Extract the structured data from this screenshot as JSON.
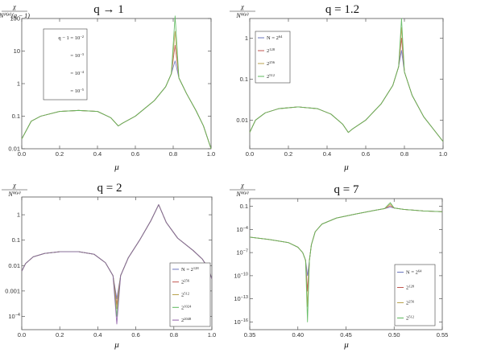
{
  "colors": {
    "series": [
      "#6a76bd",
      "#c1564f",
      "#b9a24d",
      "#5cb85c",
      "#8e5ea8"
    ],
    "frame": "#555555"
  },
  "chart_data": [
    {
      "type": "line",
      "title": "q → 1",
      "ylabel_num": "χ",
      "ylabel_den": "N^{ψ(μ)}(q − 1)",
      "xlabel": "μ",
      "xlim": [
        0,
        1
      ],
      "ylim": [
        0.01,
        100
      ],
      "yscale": "log",
      "xticks": [
        "0.0",
        "0.2",
        "0.4",
        "0.6",
        "0.8",
        "1.0"
      ],
      "yticks": [
        "0.01",
        "0.1",
        "1",
        "10",
        "100"
      ],
      "legend_position": "top-left",
      "legend": [
        "q − 1 = 10^{−2}",
        "= 10^{−3}",
        "= 10^{−4}",
        "= 10^{−5}"
      ],
      "series": [
        {
          "name": "q − 1 = 10^{−2}",
          "x": [
            0.0,
            0.05,
            0.1,
            0.2,
            0.3,
            0.4,
            0.47,
            0.51,
            0.53,
            0.6,
            0.7,
            0.76,
            0.79,
            0.81,
            0.83,
            0.87,
            0.92,
            0.96,
            1.0
          ],
          "y": [
            0.02,
            0.07,
            0.1,
            0.14,
            0.15,
            0.14,
            0.09,
            0.05,
            0.06,
            0.1,
            0.3,
            0.8,
            2.0,
            5.0,
            1.5,
            0.5,
            0.15,
            0.05,
            0.01
          ]
        },
        {
          "name": "= 10^{−3}",
          "x": [
            0.0,
            0.05,
            0.1,
            0.2,
            0.3,
            0.4,
            0.47,
            0.51,
            0.53,
            0.6,
            0.7,
            0.76,
            0.79,
            0.81,
            0.83,
            0.87,
            0.92,
            0.96,
            1.0
          ],
          "y": [
            0.02,
            0.07,
            0.1,
            0.14,
            0.15,
            0.14,
            0.09,
            0.05,
            0.06,
            0.1,
            0.3,
            0.8,
            2.0,
            15.0,
            1.5,
            0.5,
            0.15,
            0.05,
            0.01
          ]
        },
        {
          "name": "= 10^{−4}",
          "x": [
            0.0,
            0.05,
            0.1,
            0.2,
            0.3,
            0.4,
            0.47,
            0.51,
            0.53,
            0.6,
            0.7,
            0.76,
            0.79,
            0.81,
            0.83,
            0.87,
            0.92,
            0.96,
            1.0
          ],
          "y": [
            0.02,
            0.07,
            0.1,
            0.14,
            0.15,
            0.14,
            0.09,
            0.05,
            0.06,
            0.1,
            0.3,
            0.8,
            2.0,
            40.0,
            1.5,
            0.5,
            0.15,
            0.05,
            0.01
          ]
        },
        {
          "name": "= 10^{−5}",
          "x": [
            0.0,
            0.05,
            0.1,
            0.2,
            0.3,
            0.4,
            0.47,
            0.51,
            0.53,
            0.6,
            0.7,
            0.76,
            0.79,
            0.81,
            0.83,
            0.87,
            0.92,
            0.96,
            1.0
          ],
          "y": [
            0.02,
            0.07,
            0.1,
            0.14,
            0.15,
            0.14,
            0.09,
            0.05,
            0.06,
            0.1,
            0.3,
            0.8,
            2.0,
            120.0,
            1.5,
            0.5,
            0.15,
            0.05,
            0.01
          ]
        }
      ]
    },
    {
      "type": "line",
      "title": "q = 1.2",
      "ylabel_num": "χ",
      "ylabel_den": "N^{ψ(μ)}",
      "xlabel": "μ",
      "xlim": [
        0,
        1
      ],
      "ylim": [
        0.002,
        3
      ],
      "yscale": "log",
      "xticks": [
        "0.0",
        "0.2",
        "0.4",
        "0.6",
        "0.8",
        "1.0"
      ],
      "yticks": [
        "0.01",
        "0.1",
        "1"
      ],
      "legend_position": "top-left",
      "legend": [
        "N = 2^{64}",
        "2^{128}",
        "2^{256}",
        "2^{512}"
      ],
      "series": [
        {
          "name": "N = 2^{64}",
          "x": [
            0.0,
            0.03,
            0.08,
            0.15,
            0.25,
            0.35,
            0.42,
            0.48,
            0.51,
            0.53,
            0.6,
            0.68,
            0.74,
            0.77,
            0.785,
            0.8,
            0.84,
            0.9,
            0.95,
            1.0
          ],
          "y": [
            0.005,
            0.01,
            0.015,
            0.019,
            0.021,
            0.019,
            0.014,
            0.008,
            0.005,
            0.006,
            0.01,
            0.025,
            0.07,
            0.2,
            0.5,
            0.15,
            0.04,
            0.012,
            0.006,
            0.003
          ]
        },
        {
          "name": "2^{128}",
          "x": [
            0.0,
            0.03,
            0.08,
            0.15,
            0.25,
            0.35,
            0.42,
            0.48,
            0.51,
            0.53,
            0.6,
            0.68,
            0.74,
            0.77,
            0.785,
            0.8,
            0.84,
            0.9,
            0.95,
            1.0
          ],
          "y": [
            0.005,
            0.01,
            0.015,
            0.019,
            0.021,
            0.019,
            0.014,
            0.008,
            0.005,
            0.006,
            0.01,
            0.025,
            0.07,
            0.2,
            1.0,
            0.15,
            0.04,
            0.012,
            0.006,
            0.003
          ]
        },
        {
          "name": "2^{256}",
          "x": [
            0.0,
            0.03,
            0.08,
            0.15,
            0.25,
            0.35,
            0.42,
            0.48,
            0.51,
            0.53,
            0.6,
            0.68,
            0.74,
            0.77,
            0.785,
            0.8,
            0.84,
            0.9,
            0.95,
            1.0
          ],
          "y": [
            0.005,
            0.01,
            0.015,
            0.019,
            0.021,
            0.019,
            0.014,
            0.008,
            0.005,
            0.006,
            0.01,
            0.025,
            0.07,
            0.2,
            1.8,
            0.15,
            0.04,
            0.012,
            0.006,
            0.003
          ]
        },
        {
          "name": "2^{512}",
          "x": [
            0.0,
            0.03,
            0.08,
            0.15,
            0.25,
            0.35,
            0.42,
            0.48,
            0.51,
            0.53,
            0.6,
            0.68,
            0.74,
            0.77,
            0.785,
            0.8,
            0.84,
            0.9,
            0.95,
            1.0
          ],
          "y": [
            0.005,
            0.01,
            0.015,
            0.019,
            0.021,
            0.019,
            0.014,
            0.008,
            0.005,
            0.006,
            0.01,
            0.025,
            0.07,
            0.2,
            3.0,
            0.15,
            0.04,
            0.012,
            0.006,
            0.003
          ]
        }
      ]
    },
    {
      "type": "line",
      "title": "q = 2",
      "ylabel_num": "χ",
      "ylabel_den": "N^{ψ(μ)}",
      "xlabel": "μ",
      "xlim": [
        0,
        1
      ],
      "ylim": [
        3e-05,
        5
      ],
      "yscale": "log",
      "xticks": [
        "0.0",
        "0.2",
        "0.4",
        "0.6",
        "0.8",
        "1.0"
      ],
      "yticks": [
        "10^{−4}",
        "0.001",
        "0.01",
        "0.1",
        "1"
      ],
      "legend_position": "bottom-right",
      "legend": [
        "N = 2^{128}",
        "2^{256}",
        "2^{512}",
        "2^{1024}",
        "2^{2048}"
      ],
      "series": [
        {
          "name": "N = 2^{128}",
          "x": [
            0.0,
            0.02,
            0.06,
            0.12,
            0.2,
            0.3,
            0.38,
            0.44,
            0.48,
            0.5,
            0.52,
            0.56,
            0.62,
            0.68,
            0.72,
            0.76,
            0.82,
            0.9,
            0.95,
            0.98,
            1.0
          ],
          "y": [
            0.006,
            0.012,
            0.022,
            0.03,
            0.035,
            0.035,
            0.028,
            0.013,
            0.004,
            0.0005,
            0.004,
            0.02,
            0.1,
            0.6,
            2.5,
            0.5,
            0.12,
            0.04,
            0.018,
            0.008,
            0.003
          ]
        },
        {
          "name": "2^{256}",
          "x": [
            0.0,
            0.02,
            0.06,
            0.12,
            0.2,
            0.3,
            0.38,
            0.44,
            0.48,
            0.5,
            0.52,
            0.56,
            0.62,
            0.68,
            0.72,
            0.76,
            0.82,
            0.9,
            0.95,
            0.98,
            1.0
          ],
          "y": [
            0.006,
            0.012,
            0.022,
            0.03,
            0.035,
            0.035,
            0.028,
            0.013,
            0.004,
            0.0003,
            0.004,
            0.02,
            0.1,
            0.6,
            2.5,
            0.5,
            0.12,
            0.04,
            0.018,
            0.008,
            0.003
          ]
        },
        {
          "name": "2^{512}",
          "x": [
            0.0,
            0.02,
            0.06,
            0.12,
            0.2,
            0.3,
            0.38,
            0.44,
            0.48,
            0.5,
            0.52,
            0.56,
            0.62,
            0.68,
            0.72,
            0.76,
            0.82,
            0.9,
            0.95,
            0.98,
            1.0
          ],
          "y": [
            0.006,
            0.012,
            0.022,
            0.03,
            0.035,
            0.035,
            0.028,
            0.013,
            0.004,
            0.0002,
            0.004,
            0.02,
            0.1,
            0.6,
            2.5,
            0.5,
            0.12,
            0.04,
            0.018,
            0.008,
            0.003
          ]
        },
        {
          "name": "2^{1024}",
          "x": [
            0.0,
            0.02,
            0.06,
            0.12,
            0.2,
            0.3,
            0.38,
            0.44,
            0.48,
            0.5,
            0.52,
            0.56,
            0.62,
            0.68,
            0.72,
            0.76,
            0.82,
            0.9,
            0.95,
            0.98,
            1.0
          ],
          "y": [
            0.006,
            0.012,
            0.022,
            0.03,
            0.035,
            0.035,
            0.028,
            0.013,
            0.004,
            0.0001,
            0.004,
            0.02,
            0.1,
            0.6,
            2.5,
            0.5,
            0.12,
            0.04,
            0.018,
            0.008,
            0.003
          ]
        },
        {
          "name": "2^{2048}",
          "x": [
            0.0,
            0.02,
            0.06,
            0.12,
            0.2,
            0.3,
            0.38,
            0.44,
            0.48,
            0.5,
            0.52,
            0.56,
            0.62,
            0.68,
            0.72,
            0.76,
            0.82,
            0.9,
            0.95,
            0.98,
            1.0
          ],
          "y": [
            0.006,
            0.012,
            0.022,
            0.03,
            0.035,
            0.035,
            0.028,
            0.013,
            0.004,
            5e-05,
            0.004,
            0.02,
            0.1,
            0.6,
            2.5,
            0.5,
            0.12,
            0.04,
            0.018,
            0.008,
            0.003
          ]
        }
      ]
    },
    {
      "type": "line",
      "title": "q = 7",
      "ylabel_num": "χ",
      "ylabel_den": "N^{ψ(μ)}",
      "xlabel": "μ",
      "xlim": [
        0.35,
        0.55
      ],
      "ylim": [
        1e-17,
        1
      ],
      "yscale": "log",
      "xticks": [
        "0.35",
        "0.40",
        "0.45",
        "0.50",
        "0.55"
      ],
      "yticks": [
        "10^{−16}",
        "10^{−13}",
        "10^{−10}",
        "10^{−7}",
        "10^{−4}",
        "0.1"
      ],
      "legend_position": "bottom-right",
      "legend": [
        "N = 2^{64}",
        "2^{128}",
        "2^{256}",
        "2^{512}"
      ],
      "series": [
        {
          "name": "N = 2^{64}",
          "x": [
            0.35,
            0.37,
            0.39,
            0.4,
            0.405,
            0.408,
            0.41,
            0.412,
            0.414,
            0.418,
            0.425,
            0.44,
            0.46,
            0.48,
            0.49,
            0.496,
            0.5,
            0.51,
            0.53,
            0.55
          ],
          "y": [
            1e-05,
            5e-06,
            2e-06,
            5e-07,
            1e-07,
            1e-08,
            1e-10,
            1e-08,
            1e-06,
            5e-05,
            0.0005,
            0.003,
            0.01,
            0.03,
            0.05,
            0.08,
            0.06,
            0.04,
            0.025,
            0.02
          ]
        },
        {
          "name": "2^{128}",
          "x": [
            0.35,
            0.37,
            0.39,
            0.4,
            0.405,
            0.408,
            0.41,
            0.412,
            0.414,
            0.418,
            0.425,
            0.44,
            0.46,
            0.48,
            0.49,
            0.496,
            0.5,
            0.51,
            0.53,
            0.55
          ],
          "y": [
            1e-05,
            5e-06,
            2e-06,
            5e-07,
            1e-07,
            1e-08,
            1e-12,
            1e-08,
            1e-06,
            5e-05,
            0.0005,
            0.003,
            0.01,
            0.03,
            0.05,
            0.12,
            0.06,
            0.04,
            0.025,
            0.02
          ]
        },
        {
          "name": "2^{256}",
          "x": [
            0.35,
            0.37,
            0.39,
            0.4,
            0.405,
            0.408,
            0.41,
            0.412,
            0.414,
            0.418,
            0.425,
            0.44,
            0.46,
            0.48,
            0.49,
            0.496,
            0.5,
            0.51,
            0.53,
            0.55
          ],
          "y": [
            1e-05,
            5e-06,
            2e-06,
            5e-07,
            1e-07,
            1e-08,
            1e-14,
            1e-08,
            1e-06,
            5e-05,
            0.0005,
            0.003,
            0.01,
            0.03,
            0.05,
            0.2,
            0.06,
            0.04,
            0.025,
            0.02
          ]
        },
        {
          "name": "2^{512}",
          "x": [
            0.35,
            0.37,
            0.39,
            0.4,
            0.405,
            0.408,
            0.41,
            0.412,
            0.414,
            0.418,
            0.425,
            0.44,
            0.46,
            0.48,
            0.49,
            0.496,
            0.5,
            0.51,
            0.53,
            0.55
          ],
          "y": [
            1e-05,
            5e-06,
            2e-06,
            5e-07,
            1e-07,
            1e-08,
            1e-16,
            1e-08,
            1e-06,
            5e-05,
            0.0005,
            0.003,
            0.01,
            0.03,
            0.05,
            0.3,
            0.06,
            0.04,
            0.025,
            0.02
          ]
        }
      ]
    }
  ]
}
